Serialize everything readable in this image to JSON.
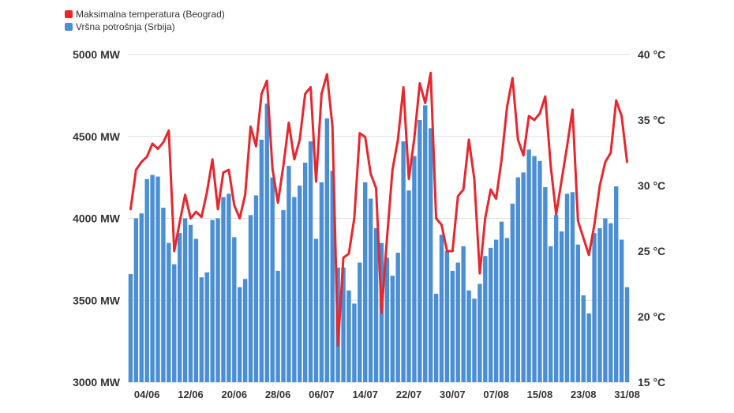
{
  "chart_data": {
    "type": "bar+line",
    "legend": [
      {
        "name": "Maksimalna temperatura (Beograd)",
        "color": "#e8262e"
      },
      {
        "name": "Vršna potrošnja (Srbija)",
        "color": "#4a8ed4"
      }
    ],
    "left_axis": {
      "labels": [
        "5000 MW",
        "4500 MW",
        "4000 MW",
        "3500 MW",
        "3000 MW"
      ],
      "values": [
        5000,
        4500,
        4000,
        3500,
        3000
      ],
      "range": [
        3000,
        5000
      ],
      "unit": "MW"
    },
    "right_axis": {
      "labels": [
        "40 °C",
        "35 °C",
        "30 °C",
        "25 °C",
        "20 °C",
        "15 °C"
      ],
      "values": [
        40,
        35,
        30,
        25,
        20,
        15
      ],
      "range": [
        15,
        40
      ],
      "unit": "°C"
    },
    "x_tick_labels": [
      "04/06",
      "12/06",
      "20/06",
      "28/06",
      "06/07",
      "14/07",
      "22/07",
      "30/07",
      "07/08",
      "15/08",
      "23/08",
      "31/08"
    ],
    "x_tick_index": [
      3,
      11,
      19,
      27,
      35,
      43,
      51,
      59,
      67,
      75,
      83,
      91
    ],
    "grid": "horizontal",
    "series": [
      {
        "name": "Vršna potrošnja (Srbija)",
        "axis": "left",
        "kind": "bar",
        "values": [
          3660,
          4000,
          4030,
          4240,
          4265,
          4255,
          4065,
          3850,
          3720,
          3910,
          4000,
          3960,
          3875,
          3640,
          3670,
          3990,
          4000,
          4130,
          4150,
          3885,
          3580,
          3630,
          4020,
          4140,
          4480,
          4700,
          4250,
          3680,
          4050,
          4320,
          4130,
          4200,
          4340,
          4470,
          3875,
          4220,
          4610,
          4290,
          3700,
          3700,
          3560,
          3480,
          3730,
          4220,
          4120,
          3940,
          3850,
          3760,
          3650,
          3790,
          4470,
          4170,
          4380,
          4600,
          4690,
          4550,
          3540,
          3900,
          3800,
          3680,
          3730,
          3830,
          3560,
          3510,
          3600,
          3770,
          3820,
          3870,
          3980,
          3880,
          4090,
          4250,
          4280,
          4420,
          4380,
          4350,
          4190,
          3830,
          4020,
          3920,
          4150,
          4160,
          3840,
          3530,
          3420,
          3910,
          3940,
          4000,
          3970,
          4195,
          3870,
          3580
        ]
      },
      {
        "name": "Maksimalna temperatura (Beograd)",
        "axis": "right",
        "kind": "line",
        "values": [
          28.2,
          31.2,
          31.8,
          32.2,
          33.2,
          32.8,
          33.3,
          34.2,
          25.0,
          27.2,
          29.3,
          27.5,
          28.0,
          27.6,
          29.5,
          32.0,
          28.2,
          31.0,
          31.2,
          28.5,
          27.5,
          29.3,
          34.5,
          33.0,
          37.0,
          38.0,
          31.3,
          28.7,
          31.5,
          34.8,
          32.0,
          33.5,
          37.0,
          37.5,
          30.3,
          37.0,
          38.5,
          34.5,
          17.8,
          24.5,
          24.8,
          27.5,
          34.0,
          33.7,
          30.9,
          29.8,
          20.3,
          26.0,
          31.2,
          33.5,
          37.5,
          30.5,
          33.6,
          37.8,
          36.3,
          38.6,
          27.5,
          27.0,
          25.0,
          25.0,
          29.2,
          29.7,
          33.5,
          30.5,
          23.3,
          27.5,
          29.7,
          29.0,
          32.0,
          36.0,
          38.2,
          33.5,
          32.3,
          35.3,
          35.0,
          35.5,
          36.8,
          31.5,
          27.8,
          30.4,
          33.0,
          35.8,
          27.3,
          26.0,
          24.7,
          27.0,
          30.0,
          31.8,
          32.5,
          36.5,
          35.3,
          31.8
        ]
      }
    ]
  }
}
